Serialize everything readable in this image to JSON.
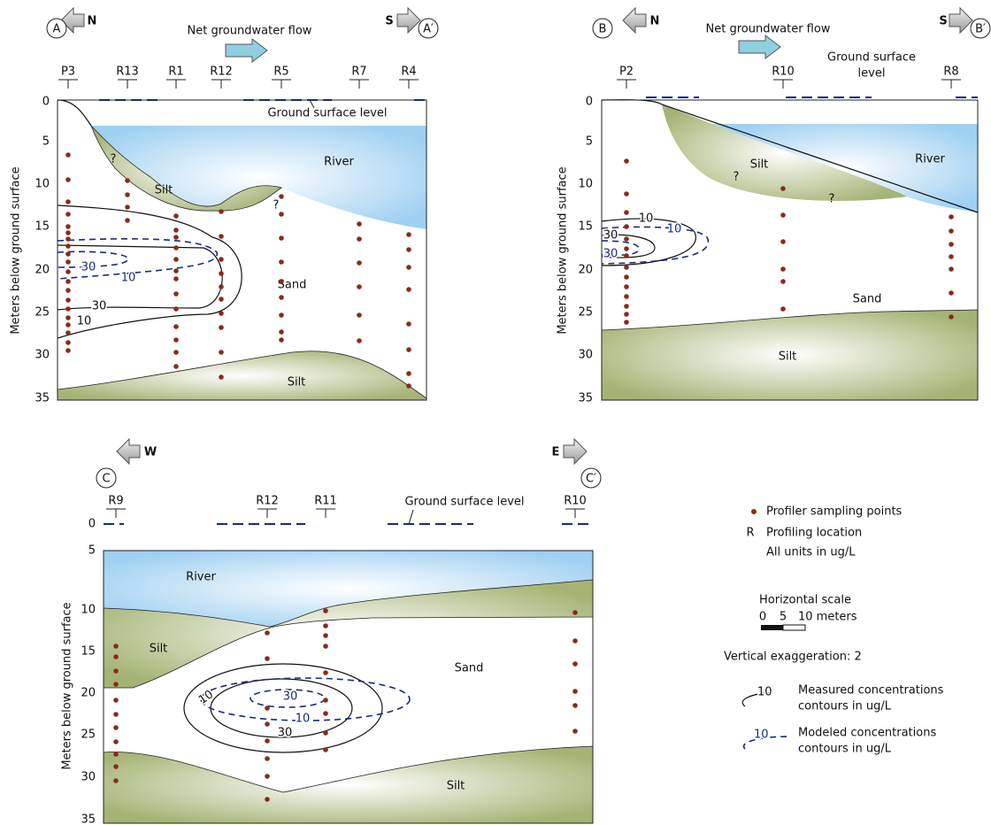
{
  "panels": [
    {
      "section_start": "A",
      "section_end": "A′",
      "left_direction": "N",
      "right_direction": "S",
      "flow_label": "Net groundwater flow",
      "y_axis_label": "Meters below ground surface",
      "depth_ticks": [
        0,
        5,
        10,
        15,
        20,
        25,
        30,
        35
      ],
      "profiles": [
        "P3",
        "R13",
        "R1",
        "R12",
        "R5",
        "R7",
        "R4"
      ],
      "ground_label": [
        "Ground surface level"
      ],
      "regions": [
        "River",
        "Silt",
        "Sand",
        "Silt"
      ],
      "contour_labels": [
        "30",
        "10",
        "30",
        "10"
      ],
      "uncertain_marks": [
        "?",
        "?"
      ]
    },
    {
      "section_start": "B",
      "section_end": "B′",
      "left_direction": "N",
      "right_direction": "S",
      "flow_label": "Net groundwater flow",
      "y_axis_label": "Meters below ground surface",
      "depth_ticks": [
        0,
        5,
        10,
        15,
        20,
        25,
        30,
        35
      ],
      "profiles": [
        "P2",
        "R10",
        "R8"
      ],
      "ground_label": [
        "Ground surface",
        "level"
      ],
      "regions": [
        "Silt",
        "River",
        "Sand",
        "Silt"
      ],
      "contour_labels": [
        "10",
        "30",
        "10",
        "30"
      ],
      "uncertain_marks": [
        "?",
        "?"
      ]
    },
    {
      "section_start": "C",
      "section_end": "C′",
      "left_direction": "W",
      "right_direction": "E",
      "y_axis_label": "Meters below ground surface",
      "depth_ticks": [
        0,
        5,
        10,
        15,
        20,
        25,
        30,
        35
      ],
      "profiles": [
        "R9",
        "R12",
        "R11",
        "R10"
      ],
      "ground_label": [
        "Ground surface level"
      ],
      "regions": [
        "River",
        "Silt",
        "Sand",
        "Silt"
      ],
      "contour_labels": [
        "10",
        "30",
        "30",
        "10"
      ]
    }
  ],
  "legend": {
    "sampling_points": "Profiler sampling points",
    "profile_symbol": "R",
    "profile_location": "Profiling location",
    "units": "All units in ug/L",
    "scale_title": "Horizontal scale",
    "scale_labels": [
      "0",
      "5",
      "10 meters"
    ],
    "vertical_exaggeration": "Vertical exaggeration: 2",
    "measured_sample": "10",
    "measured_text": [
      "Measured concentrations",
      "contours in ug/L"
    ],
    "modeled_sample": "10",
    "modeled_text": [
      "Modeled concentrations",
      "contours in ug/L"
    ]
  }
}
